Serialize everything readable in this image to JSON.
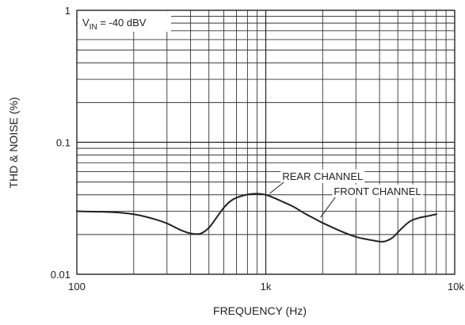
{
  "chart_data": {
    "type": "line",
    "title": "",
    "xlabel": "FREQUENCY (Hz)",
    "ylabel": "THD & NOISE (%)",
    "x_scale": "log",
    "y_scale": "log",
    "xlim": [
      100,
      10000
    ],
    "ylim": [
      0.01,
      1
    ],
    "grid": true,
    "x_ticks": [
      {
        "value": 100,
        "label": "100"
      },
      {
        "value": 1000,
        "label": "1k"
      },
      {
        "value": 10000,
        "label": "10k"
      }
    ],
    "y_ticks": [
      {
        "value": 0.01,
        "label": "0.01"
      },
      {
        "value": 0.1,
        "label": "0.1"
      },
      {
        "value": 1,
        "label": "1"
      }
    ],
    "condition": {
      "prefix": "V",
      "subscript": "IN",
      "suffix": " = -40 dBV"
    },
    "series": [
      {
        "name": "REAR CHANNEL",
        "color": "#222222",
        "points": [
          [
            100,
            0.03
          ],
          [
            150,
            0.0296
          ],
          [
            200,
            0.0285
          ],
          [
            250,
            0.0265
          ],
          [
            300,
            0.0243
          ],
          [
            350,
            0.0218
          ],
          [
            400,
            0.0204
          ],
          [
            450,
            0.0203
          ],
          [
            500,
            0.0225
          ],
          [
            550,
            0.027
          ],
          [
            600,
            0.032
          ],
          [
            650,
            0.0358
          ],
          [
            700,
            0.038
          ],
          [
            800,
            0.0402
          ],
          [
            900,
            0.0408
          ],
          [
            1000,
            0.04
          ],
          [
            1100,
            0.038
          ],
          [
            1200,
            0.036
          ],
          [
            1400,
            0.0325
          ],
          [
            1600,
            0.029
          ],
          [
            1800,
            0.0265
          ],
          [
            2000,
            0.0245
          ],
          [
            2500,
            0.0212
          ],
          [
            3000,
            0.0192
          ],
          [
            3500,
            0.0183
          ],
          [
            4000,
            0.0177
          ],
          [
            4300,
            0.0178
          ],
          [
            4700,
            0.019
          ],
          [
            5200,
            0.022
          ],
          [
            5800,
            0.0252
          ],
          [
            6500,
            0.0268
          ],
          [
            7200,
            0.0276
          ],
          [
            8000,
            0.0285
          ]
        ]
      }
    ],
    "annotations": [
      {
        "text": "REAR CHANNEL",
        "x": 2000,
        "y": 0.052,
        "target": [
          1050,
          0.041
        ]
      },
      {
        "text": "FRONT CHANNEL",
        "x": 3900,
        "y": 0.04,
        "target": [
          1950,
          0.027
        ]
      }
    ]
  }
}
